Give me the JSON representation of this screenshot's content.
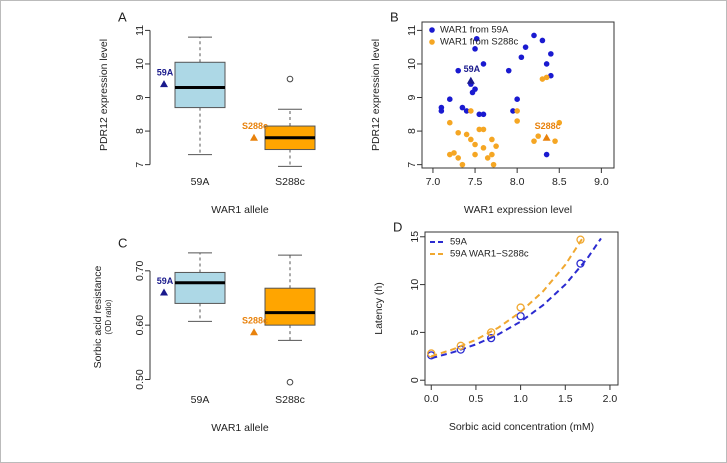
{
  "chart_data": [
    {
      "type": "box",
      "panel": "A",
      "ylabel": "PDR12 expression level",
      "xlabel": "WAR1 allele",
      "categories": [
        "59A",
        "S288c"
      ],
      "ylim": [
        6.9,
        11.25
      ],
      "yticks": [
        7,
        8,
        9,
        10,
        11
      ],
      "box_colors": [
        "#add8e6",
        "#ffa500"
      ],
      "boxes": [
        {
          "whislo": 7.3,
          "q1": 8.7,
          "med": 9.3,
          "q3": 10.05,
          "whishi": 10.8,
          "fliers": []
        },
        {
          "whislo": 6.95,
          "q1": 7.45,
          "med": 7.8,
          "q3": 8.15,
          "whishi": 8.65,
          "fliers": [
            9.55
          ]
        }
      ],
      "markers": [
        {
          "label": "59A",
          "value": 9.4,
          "color": "#1a1a8c"
        },
        {
          "label": "S288c",
          "value": 7.8,
          "color": "#e8820c"
        }
      ]
    },
    {
      "type": "scatter",
      "panel": "B",
      "ylabel": "PDR12 expression level",
      "xlabel": "WAR1 expression level",
      "xlim": [
        6.87,
        9.15
      ],
      "xticks": [
        {
          "value": 7.0,
          "label": "7.0"
        },
        {
          "value": 7.5,
          "label": "7.5"
        },
        {
          "value": 8.0,
          "label": "8.0"
        },
        {
          "value": 8.5,
          "label": "8.5"
        },
        {
          "value": 9.0,
          "label": "9.0"
        }
      ],
      "ylim": [
        6.9,
        11.25
      ],
      "yticks": [
        7,
        8,
        9,
        10,
        11
      ],
      "legend": "top-left",
      "series": [
        {
          "name": "WAR1 from 59A",
          "color": "#1a1ad0",
          "x": [
            7.1,
            7.1,
            7.2,
            7.3,
            7.35,
            7.4,
            7.45,
            7.47,
            7.5,
            7.52,
            7.5,
            7.55,
            7.6,
            7.6,
            7.9,
            7.95,
            8.0,
            8.05,
            8.1,
            8.2,
            8.3,
            8.35,
            8.35,
            8.4,
            8.4
          ],
          "values": [
            8.6,
            8.7,
            8.95,
            9.8,
            8.7,
            8.6,
            9.4,
            9.15,
            10.45,
            10.75,
            9.25,
            8.5,
            8.5,
            10.0,
            9.8,
            8.6,
            8.95,
            10.2,
            10.5,
            10.85,
            10.7,
            10.0,
            7.3,
            9.65,
            10.3
          ]
        },
        {
          "name": "WAR1 from S288c",
          "color": "#f5a623",
          "x": [
            7.2,
            7.2,
            7.25,
            7.3,
            7.35,
            7.3,
            7.4,
            7.45,
            7.45,
            7.5,
            7.5,
            7.55,
            7.6,
            7.6,
            7.65,
            7.7,
            7.7,
            7.72,
            7.75,
            8.0,
            8.0,
            8.2,
            8.25,
            8.3,
            8.35,
            8.45,
            8.5
          ],
          "values": [
            8.25,
            7.3,
            7.35,
            7.2,
            7.0,
            7.95,
            7.9,
            7.75,
            8.6,
            7.3,
            7.6,
            8.05,
            7.5,
            8.05,
            7.2,
            7.3,
            7.75,
            7.0,
            7.55,
            8.3,
            8.6,
            7.7,
            7.85,
            9.55,
            9.6,
            7.7,
            8.25
          ]
        }
      ],
      "markers": [
        {
          "label": "59A",
          "x": 7.45,
          "value": 9.5,
          "color": "#1a1a8c"
        },
        {
          "label": "S288c",
          "x": 8.35,
          "value": 7.8,
          "color": "#e8820c"
        }
      ]
    },
    {
      "type": "box",
      "panel": "C",
      "ylabel": "Sorbic acid resistance",
      "ylabel2": "(OD ratio)",
      "xlabel": "WAR1 allele",
      "categories": [
        "59A",
        "S288c"
      ],
      "ylim": [
        0.488,
        0.742
      ],
      "yticks": [
        {
          "value": 0.5,
          "label": "0.50"
        },
        {
          "value": 0.6,
          "label": "0.60"
        },
        {
          "value": 0.7,
          "label": "0.70"
        }
      ],
      "box_colors": [
        "#add8e6",
        "#ffa500"
      ],
      "boxes": [
        {
          "whislo": 0.607,
          "q1": 0.64,
          "med": 0.678,
          "q3": 0.697,
          "whishi": 0.733,
          "fliers": []
        },
        {
          "whislo": 0.572,
          "q1": 0.6,
          "med": 0.623,
          "q3": 0.668,
          "whishi": 0.729,
          "fliers": [
            0.495
          ]
        }
      ],
      "markers": [
        {
          "label": "59A",
          "value": 0.66,
          "color": "#1a1a8c"
        },
        {
          "label": "S288c",
          "value": 0.587,
          "color": "#e8820c"
        }
      ]
    },
    {
      "type": "line",
      "panel": "D",
      "ylabel": "Latency (h)",
      "xlabel": "Sorbic acid concentration (mM)",
      "xlim": [
        -0.07,
        2.09
      ],
      "xticks": [
        {
          "value": 0.0,
          "label": "0.0"
        },
        {
          "value": 0.5,
          "label": "0.5"
        },
        {
          "value": 1.0,
          "label": "1.0"
        },
        {
          "value": 1.5,
          "label": "1.5"
        },
        {
          "value": 2.0,
          "label": "2.0"
        }
      ],
      "ylim": [
        -0.5,
        15.5
      ],
      "yticks": [
        0,
        5,
        10,
        15
      ],
      "legend": "top-left",
      "series": [
        {
          "name": "59A",
          "color": "#2b2bd0",
          "x": [
            0,
            0.33,
            0.67,
            1.0,
            1.67
          ],
          "values": [
            2.6,
            3.2,
            4.4,
            6.7,
            12.2
          ],
          "fit_x": [
            0,
            0.25,
            0.5,
            0.75,
            1.0,
            1.25,
            1.5,
            1.75,
            1.9
          ],
          "fit_values": [
            2.3,
            2.94,
            3.75,
            4.79,
            6.13,
            7.83,
            10.0,
            12.78,
            14.83
          ]
        },
        {
          "name": "59A WAR1−S288c",
          "color": "#f0a830",
          "x": [
            0,
            0.33,
            0.67,
            1.0,
            1.67
          ],
          "values": [
            2.8,
            3.6,
            5.0,
            7.6,
            14.7
          ],
          "fit_x": [
            0,
            0.25,
            0.5,
            0.75,
            1.0,
            1.25,
            1.5,
            1.7
          ],
          "fit_values": [
            2.5,
            3.25,
            4.23,
            5.49,
            7.14,
            9.28,
            12.07,
            14.95
          ]
        }
      ]
    }
  ]
}
